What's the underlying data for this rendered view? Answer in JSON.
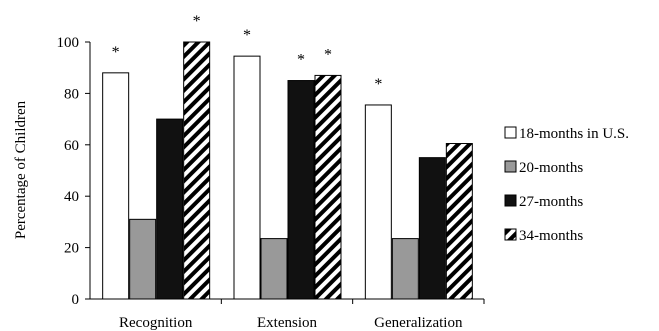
{
  "chart_data": {
    "type": "bar",
    "title": "",
    "xlabel": "",
    "ylabel": "Percentage of Children",
    "ylim": [
      0,
      100
    ],
    "yticks": [
      0,
      20,
      40,
      60,
      80,
      100
    ],
    "grid": false,
    "legend_position": "right",
    "categories": [
      "Recognition",
      "Extension",
      "Generalization"
    ],
    "series": [
      {
        "name": "18-months in U.S.",
        "fill": "white",
        "color": "#ffffff",
        "values": [
          88,
          94.5,
          75.5
        ],
        "significant": [
          true,
          true,
          true
        ]
      },
      {
        "name": "20-months",
        "fill": "gray",
        "color": "#999999",
        "values": [
          31,
          23.5,
          23.5
        ],
        "significant": [
          false,
          false,
          false
        ]
      },
      {
        "name": "27-months",
        "fill": "black",
        "color": "#111111",
        "values": [
          70,
          85,
          55
        ],
        "significant": [
          false,
          true,
          false
        ]
      },
      {
        "name": "34-months",
        "fill": "diagonal-stripes",
        "color": "#000000",
        "values": [
          100,
          87,
          60.5
        ],
        "significant": [
          true,
          true,
          false
        ]
      }
    ],
    "significance_marker": "*"
  }
}
